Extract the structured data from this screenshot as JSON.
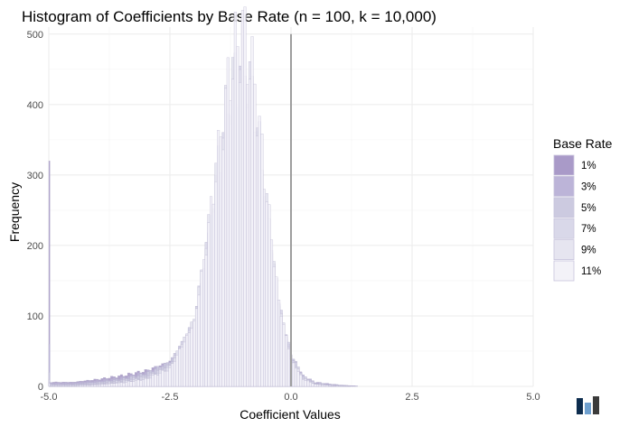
{
  "chart_data": {
    "type": "bar",
    "title": "Histogram of Coefficients by Base Rate (n = 100, k = 10,000)",
    "xlabel": "Coefficient Values",
    "ylabel": "Frequency",
    "xlim": [
      -5.0,
      5.0
    ],
    "ylim": [
      0,
      510
    ],
    "x_ticks": [
      "-5.0",
      "-2.5",
      "0.0",
      "2.5",
      "5.0"
    ],
    "x_tick_values": [
      -5.0,
      -2.5,
      0.0,
      2.5,
      5.0
    ],
    "y_ticks": [
      "0",
      "100",
      "200",
      "300",
      "400",
      "500"
    ],
    "y_tick_values": [
      0,
      100,
      200,
      300,
      400,
      500
    ],
    "grid": true,
    "vline_x": 0.0,
    "legend": {
      "title": "Base Rate",
      "placement": "right",
      "entries": [
        "1%",
        "3%",
        "5%",
        "7%",
        "9%",
        "11%"
      ]
    },
    "bin_width": 0.05,
    "series": [
      {
        "name": "1%",
        "color": "#a99ac8",
        "points": [
          [
            -5.0,
            320
          ],
          [
            -4.5,
            6
          ],
          [
            -4.0,
            10
          ],
          [
            -3.5,
            15
          ],
          [
            -3.0,
            22
          ],
          [
            -2.5,
            35
          ],
          [
            -2.0,
            70
          ],
          [
            -1.75,
            110
          ],
          [
            -1.5,
            160
          ],
          [
            -1.25,
            210
          ],
          [
            -1.0,
            230
          ],
          [
            -0.75,
            200
          ],
          [
            -0.5,
            150
          ],
          [
            -0.25,
            90
          ],
          [
            -0.1,
            60
          ],
          [
            0.0,
            30
          ],
          [
            0.25,
            12
          ],
          [
            0.5,
            5
          ],
          [
            1.0,
            2
          ],
          [
            1.5,
            0
          ]
        ]
      },
      {
        "name": "3%",
        "color": "#bcb4d8",
        "points": [
          [
            -5.0,
            60
          ],
          [
            -4.5,
            5
          ],
          [
            -4.0,
            8
          ],
          [
            -3.5,
            12
          ],
          [
            -3.0,
            20
          ],
          [
            -2.5,
            35
          ],
          [
            -2.0,
            80
          ],
          [
            -1.75,
            140
          ],
          [
            -1.5,
            210
          ],
          [
            -1.25,
            280
          ],
          [
            -1.0,
            300
          ],
          [
            -0.75,
            260
          ],
          [
            -0.5,
            180
          ],
          [
            -0.25,
            100
          ],
          [
            0.0,
            40
          ],
          [
            0.25,
            15
          ],
          [
            0.5,
            6
          ],
          [
            1.0,
            2
          ],
          [
            1.5,
            0
          ]
        ]
      },
      {
        "name": "5%",
        "color": "#cccae0",
        "points": [
          [
            -5.0,
            20
          ],
          [
            -4.5,
            3
          ],
          [
            -4.0,
            6
          ],
          [
            -3.5,
            10
          ],
          [
            -3.0,
            18
          ],
          [
            -2.5,
            35
          ],
          [
            -2.0,
            90
          ],
          [
            -1.75,
            170
          ],
          [
            -1.5,
            250
          ],
          [
            -1.25,
            330
          ],
          [
            -1.0,
            350
          ],
          [
            -0.75,
            300
          ],
          [
            -0.5,
            210
          ],
          [
            -0.25,
            110
          ],
          [
            0.0,
            45
          ],
          [
            0.25,
            15
          ],
          [
            0.5,
            5
          ],
          [
            1.0,
            1
          ],
          [
            1.5,
            0
          ]
        ]
      },
      {
        "name": "7%",
        "color": "#d9d8e9",
        "points": [
          [
            -5.0,
            10
          ],
          [
            -4.5,
            2
          ],
          [
            -4.0,
            4
          ],
          [
            -3.5,
            8
          ],
          [
            -3.0,
            14
          ],
          [
            -2.5,
            30
          ],
          [
            -2.0,
            95
          ],
          [
            -1.75,
            190
          ],
          [
            -1.5,
            290
          ],
          [
            -1.25,
            380
          ],
          [
            -1.0,
            420
          ],
          [
            -0.75,
            360
          ],
          [
            -0.5,
            240
          ],
          [
            -0.25,
            120
          ],
          [
            0.0,
            45
          ],
          [
            0.25,
            14
          ],
          [
            0.5,
            4
          ],
          [
            1.0,
            1
          ],
          [
            1.5,
            0
          ]
        ]
      },
      {
        "name": "9%",
        "color": "#e6e5f0",
        "points": [
          [
            -5.0,
            6
          ],
          [
            -4.5,
            1
          ],
          [
            -4.0,
            3
          ],
          [
            -3.5,
            6
          ],
          [
            -3.0,
            12
          ],
          [
            -2.5,
            28
          ],
          [
            -2.0,
            95
          ],
          [
            -1.75,
            200
          ],
          [
            -1.5,
            320
          ],
          [
            -1.25,
            420
          ],
          [
            -1.0,
            470
          ],
          [
            -0.75,
            400
          ],
          [
            -0.5,
            260
          ],
          [
            -0.25,
            120
          ],
          [
            0.0,
            40
          ],
          [
            0.25,
            12
          ],
          [
            0.5,
            3
          ],
          [
            1.0,
            0
          ]
        ]
      },
      {
        "name": "11%",
        "color": "#f3f2f8",
        "points": [
          [
            -5.0,
            4
          ],
          [
            -4.5,
            1
          ],
          [
            -4.0,
            2
          ],
          [
            -3.5,
            5
          ],
          [
            -3.0,
            10
          ],
          [
            -2.5,
            25
          ],
          [
            -2.0,
            90
          ],
          [
            -1.75,
            200
          ],
          [
            -1.5,
            330
          ],
          [
            -1.25,
            450
          ],
          [
            -1.0,
            505
          ],
          [
            -0.75,
            430
          ],
          [
            -0.5,
            270
          ],
          [
            -0.25,
            120
          ],
          [
            0.0,
            38
          ],
          [
            0.25,
            10
          ],
          [
            0.5,
            3
          ],
          [
            1.0,
            0
          ]
        ]
      }
    ]
  }
}
